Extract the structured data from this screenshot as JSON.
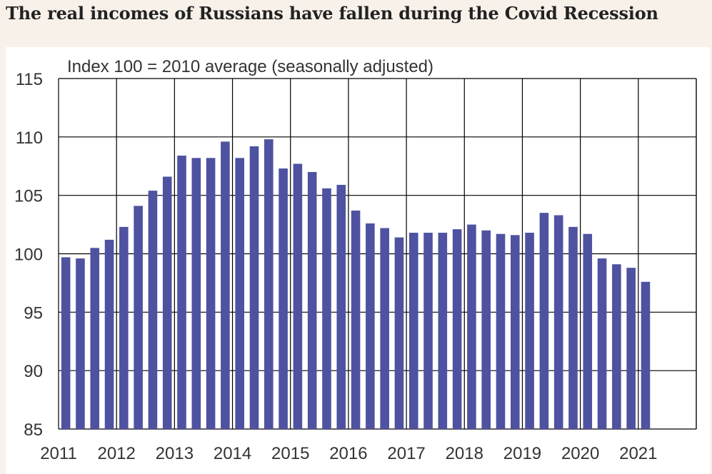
{
  "title": "The real incomes of Russians have fallen during the Covid Recession",
  "colors": {
    "bar": "#4e52a0",
    "grid": "#000000",
    "background": "#f8f1ea"
  },
  "chart_data": {
    "type": "bar",
    "title": "The real incomes of Russians have fallen during the Covid Recession",
    "subtitle": "Index 100 = 2010 average (seasonally adjusted)",
    "xlabel": "",
    "ylabel": "",
    "ylim": [
      85,
      115
    ],
    "yticks": [
      "115",
      "110",
      "105",
      "100",
      "95",
      "90",
      "85"
    ],
    "xticks": [
      "2011",
      "2012",
      "2013",
      "2014",
      "2015",
      "2016",
      "2017",
      "2018",
      "2019",
      "2020",
      "2021"
    ],
    "grid": true,
    "categories": [
      "2011 Q1",
      "2011 Q2",
      "2011 Q3",
      "2011 Q4",
      "2012 Q1",
      "2012 Q2",
      "2012 Q3",
      "2012 Q4",
      "2013 Q1",
      "2013 Q2",
      "2013 Q3",
      "2013 Q4",
      "2014 Q1",
      "2014 Q2",
      "2014 Q3",
      "2014 Q4",
      "2015 Q1",
      "2015 Q2",
      "2015 Q3",
      "2015 Q4",
      "2016 Q1",
      "2016 Q2",
      "2016 Q3",
      "2016 Q4",
      "2017 Q1",
      "2017 Q2",
      "2017 Q3",
      "2017 Q4",
      "2018 Q1",
      "2018 Q2",
      "2018 Q3",
      "2018 Q4",
      "2019 Q1",
      "2019 Q2",
      "2019 Q3",
      "2019 Q4",
      "2020 Q1",
      "2020 Q2",
      "2020 Q3",
      "2020 Q4",
      "2021 Q1"
    ],
    "values": [
      99.7,
      99.6,
      100.5,
      101.2,
      102.3,
      104.1,
      105.4,
      106.6,
      108.4,
      108.2,
      108.2,
      109.6,
      108.2,
      109.2,
      109.8,
      107.3,
      107.7,
      107.0,
      105.6,
      105.9,
      103.7,
      102.6,
      102.2,
      101.4,
      101.8,
      101.8,
      101.8,
      102.1,
      102.5,
      102.0,
      101.7,
      101.6,
      101.8,
      103.5,
      103.3,
      102.3,
      101.7,
      99.6,
      99.1,
      98.8,
      97.6
    ]
  }
}
